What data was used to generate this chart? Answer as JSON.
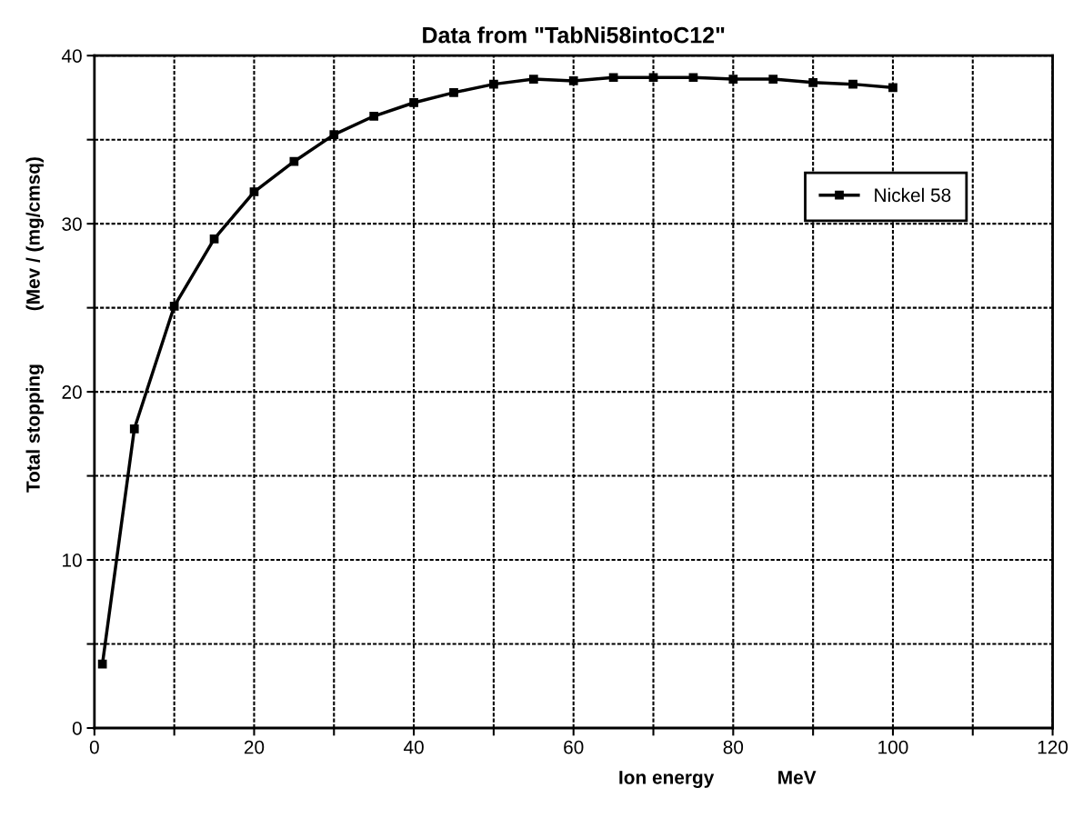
{
  "chart_data": {
    "type": "line",
    "title": "Data from \"TabNi58intoC12\"",
    "xlabel": "Ion energy            MeV",
    "ylabel": "Total stopping          (Mev / (mg/cmsq)",
    "x": [
      1,
      5,
      10,
      15,
      20,
      25,
      30,
      35,
      40,
      45,
      50,
      55,
      60,
      65,
      70,
      75,
      80,
      85,
      90,
      95,
      100
    ],
    "series": [
      {
        "name": "Nickel 58",
        "color": "#000000",
        "values": [
          3.8,
          17.8,
          25.1,
          29.1,
          31.9,
          33.7,
          35.3,
          36.4,
          37.2,
          37.8,
          38.3,
          38.6,
          38.5,
          38.7,
          38.7,
          38.7,
          38.6,
          38.6,
          38.4,
          38.3,
          38.1
        ]
      }
    ],
    "xlim": [
      0,
      120
    ],
    "ylim": [
      0,
      40
    ],
    "xticks": [
      0,
      {
        "value": 10,
        "label": null
      },
      20,
      {
        "value": 30,
        "label": null
      },
      40,
      {
        "value": 50,
        "label": null
      },
      60,
      {
        "value": 70,
        "label": null
      },
      80,
      {
        "value": 90,
        "label": null
      },
      100,
      {
        "value": 110,
        "label": null
      },
      120
    ],
    "yticks": [
      0,
      {
        "value": 5,
        "label": null
      },
      10,
      {
        "value": 15,
        "label": null
      },
      20,
      {
        "value": 25,
        "label": null
      },
      30,
      {
        "value": 35,
        "label": null
      },
      40
    ],
    "grid": true,
    "legend": "right",
    "marker": "square",
    "line_style": "solid"
  }
}
